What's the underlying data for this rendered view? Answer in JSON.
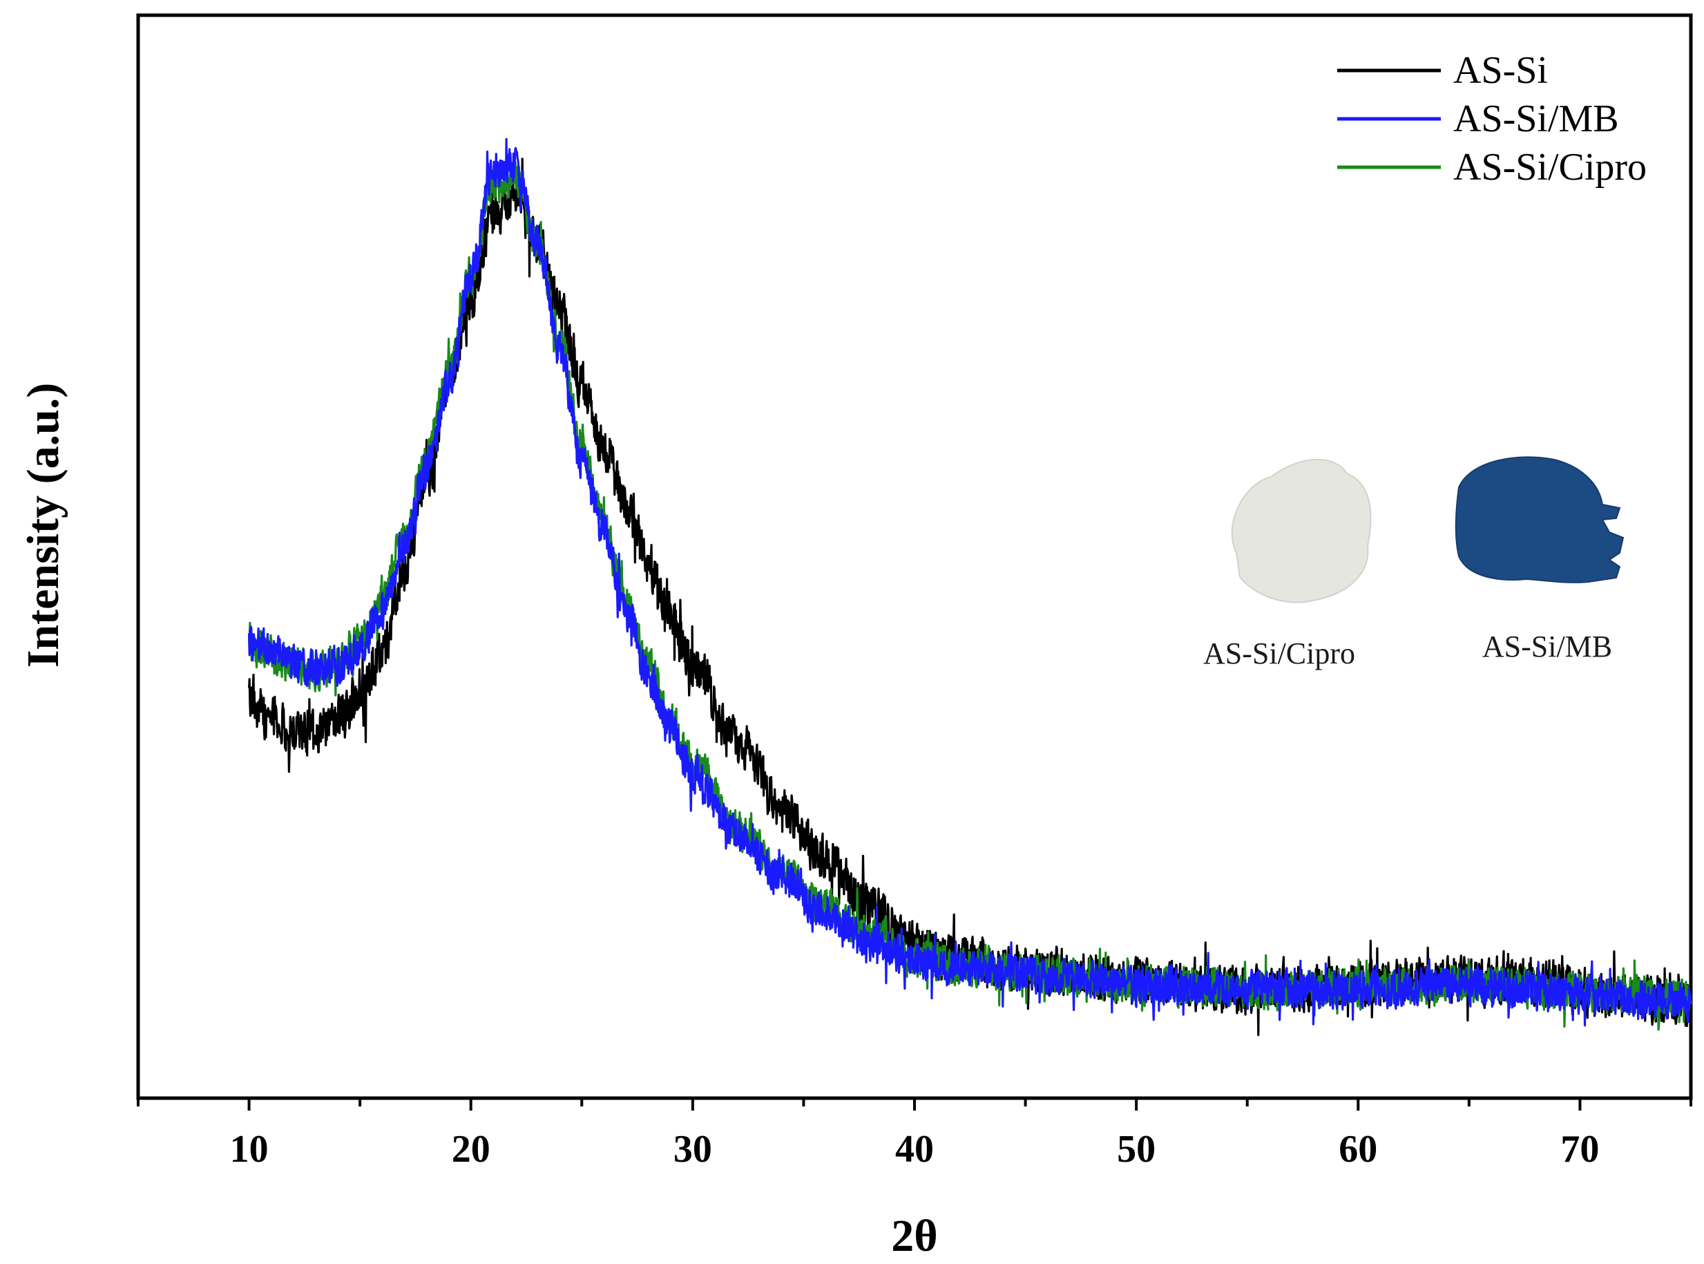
{
  "chart_data": {
    "type": "line",
    "title": "",
    "xlabel": "2θ",
    "ylabel": "Intensity (a.u.)",
    "xlim": [
      5,
      75
    ],
    "ylim": [
      0,
      100
    ],
    "x_ticks": [
      10,
      20,
      30,
      40,
      50,
      60,
      70
    ],
    "x_tick_labels": [
      "10",
      "20",
      "30",
      "40",
      "50",
      "60",
      "70"
    ],
    "y_ticks_shown": false,
    "grid": false,
    "legend_position": "top-right",
    "series": [
      {
        "name": "AS-Si",
        "color": "#000000",
        "noise": 2.6,
        "points": [
          [
            10,
            37
          ],
          [
            11,
            35
          ],
          [
            12,
            33.5
          ],
          [
            13,
            33.5
          ],
          [
            14,
            35
          ],
          [
            15,
            37
          ],
          [
            16,
            41
          ],
          [
            17,
            49
          ],
          [
            18,
            57
          ],
          [
            19,
            66
          ],
          [
            20,
            74
          ],
          [
            21,
            81.5
          ],
          [
            22,
            83
          ],
          [
            23,
            79
          ],
          [
            24,
            73
          ],
          [
            25,
            66
          ],
          [
            26,
            60
          ],
          [
            27,
            55
          ],
          [
            28,
            49.5
          ],
          [
            29,
            44.5
          ],
          [
            30,
            40
          ],
          [
            32,
            33
          ],
          [
            34,
            27
          ],
          [
            36,
            22
          ],
          [
            38,
            17.5
          ],
          [
            40,
            14
          ],
          [
            42,
            12.7
          ],
          [
            45,
            12
          ],
          [
            48,
            11.3
          ],
          [
            50,
            10.7
          ],
          [
            55,
            10
          ],
          [
            60,
            10.5
          ],
          [
            65,
            11.1
          ],
          [
            68,
            10.7
          ],
          [
            70,
            9.8
          ],
          [
            72,
            9.3
          ],
          [
            75,
            9
          ]
        ]
      },
      {
        "name": "AS-Si/MB",
        "color": "#1a1aff",
        "noise": 2.1,
        "points": [
          [
            10,
            42
          ],
          [
            11,
            41.5
          ],
          [
            12,
            40
          ],
          [
            13,
            39.5
          ],
          [
            14,
            40
          ],
          [
            15,
            41.5
          ],
          [
            16,
            45
          ],
          [
            17,
            51
          ],
          [
            18,
            58
          ],
          [
            19,
            66
          ],
          [
            20,
            76
          ],
          [
            21,
            86
          ],
          [
            22,
            86
          ],
          [
            23,
            79
          ],
          [
            24,
            69
          ],
          [
            25,
            59
          ],
          [
            26,
            52
          ],
          [
            27,
            45
          ],
          [
            28,
            39
          ],
          [
            29,
            34
          ],
          [
            30,
            30
          ],
          [
            32,
            24.5
          ],
          [
            34,
            20.5
          ],
          [
            36,
            17
          ],
          [
            38,
            14.5
          ],
          [
            40,
            12.7
          ],
          [
            42,
            12
          ],
          [
            45,
            11.5
          ],
          [
            48,
            11
          ],
          [
            50,
            10.3
          ],
          [
            55,
            10
          ],
          [
            60,
            10
          ],
          [
            65,
            10.5
          ],
          [
            70,
            9.6
          ],
          [
            75,
            9
          ]
        ]
      },
      {
        "name": "AS-Si/Cipro",
        "color": "#1a8a1a",
        "noise": 2.1,
        "points": [
          [
            10,
            41.5
          ],
          [
            11,
            41
          ],
          [
            12,
            40
          ],
          [
            13,
            39.5
          ],
          [
            14,
            40.5
          ],
          [
            15,
            42
          ],
          [
            16,
            46
          ],
          [
            17,
            52
          ],
          [
            18,
            59
          ],
          [
            19,
            67
          ],
          [
            20,
            76
          ],
          [
            21,
            84.5
          ],
          [
            22,
            85
          ],
          [
            23,
            79
          ],
          [
            24,
            70
          ],
          [
            25,
            60
          ],
          [
            26,
            53
          ],
          [
            27,
            46
          ],
          [
            28,
            40
          ],
          [
            29,
            35
          ],
          [
            30,
            31
          ],
          [
            32,
            25
          ],
          [
            34,
            21
          ],
          [
            36,
            17.5
          ],
          [
            38,
            15
          ],
          [
            40,
            13
          ],
          [
            42,
            12.2
          ],
          [
            45,
            11.7
          ],
          [
            48,
            11
          ],
          [
            50,
            10.5
          ],
          [
            55,
            10
          ],
          [
            60,
            10.2
          ],
          [
            65,
            10.5
          ],
          [
            70,
            9.8
          ],
          [
            75,
            9.3
          ]
        ]
      }
    ],
    "inset_photos": [
      {
        "caption": "AS-Si/Cipro",
        "color": "#e6e6e0"
      },
      {
        "caption": "AS-Si/MB",
        "color": "#1c4a82"
      }
    ]
  }
}
